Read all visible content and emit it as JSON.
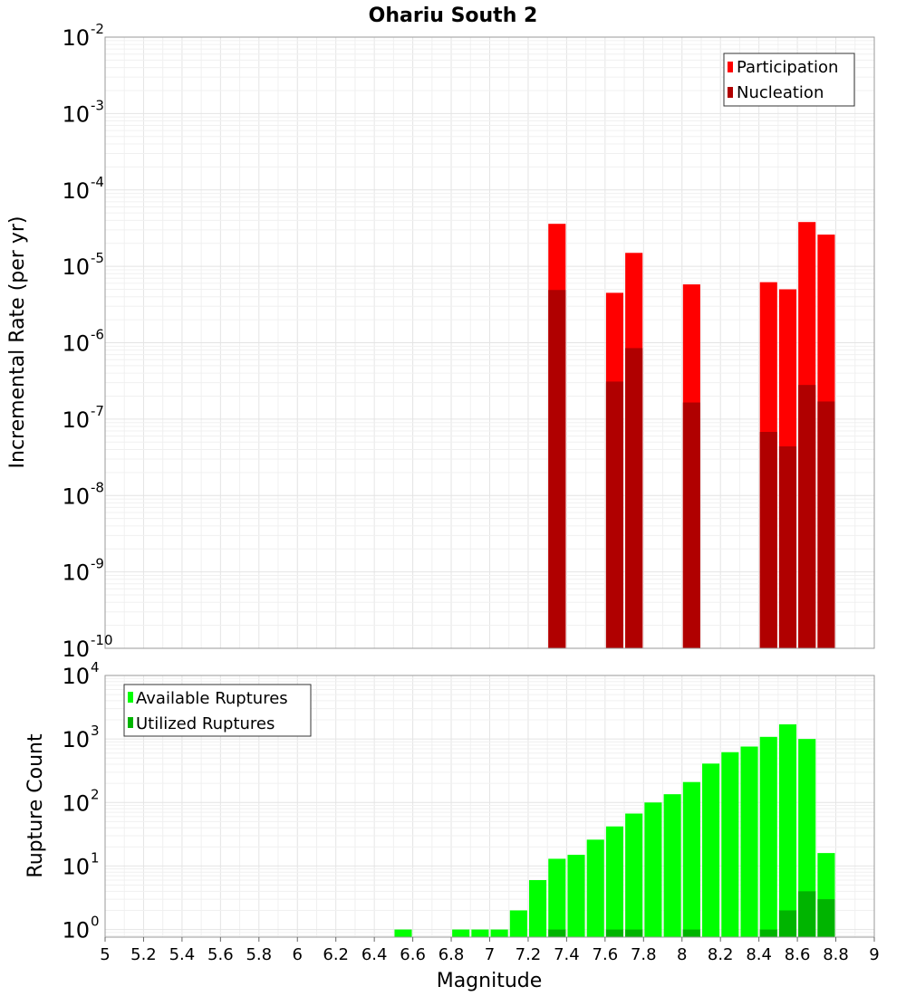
{
  "title": "Ohariu South 2",
  "chart_data": [
    {
      "id": "rate",
      "type": "bar",
      "scale": "log",
      "ylabel": "Incremental Rate (per yr)",
      "xlim": [
        5,
        9
      ],
      "ylim_exp": [
        -10,
        -2
      ],
      "ytick_base": "10",
      "ytick_exps": [
        "-10",
        "-9",
        "-8",
        "-7",
        "-6",
        "-5",
        "-4",
        "-3",
        "-2"
      ],
      "legend_position": "top-right",
      "legend": [
        "Participation",
        "Nucleation"
      ],
      "colors": [
        "#ff0000",
        "#b00000"
      ],
      "x": [
        7.35,
        7.65,
        7.75,
        8.05,
        8.45,
        8.55,
        8.65,
        8.75
      ],
      "series": [
        {
          "name": "Participation",
          "values": [
            3.6e-05,
            4.5e-06,
            1.5e-05,
            5.8e-06,
            6.2e-06,
            5e-06,
            3.8e-05,
            2.6e-05
          ]
        },
        {
          "name": "Nucleation",
          "values": [
            4.9e-06,
            3.1e-07,
            8.5e-07,
            1.65e-07,
            6.8e-08,
            4.4e-08,
            2.8e-07,
            1.7e-07
          ]
        }
      ]
    },
    {
      "id": "count",
      "type": "bar",
      "scale": "log",
      "ylabel": "Rupture Count",
      "xlabel": "Magnitude",
      "xlim": [
        5,
        9
      ],
      "ylim_exp": [
        -0.12,
        4
      ],
      "ytick_base": "10",
      "ytick_exps": [
        "0",
        "1",
        "2",
        "3",
        "4"
      ],
      "legend_position": "top-left",
      "legend": [
        "Available Ruptures",
        "Utilized Ruptures"
      ],
      "colors": [
        "#00ff00",
        "#00b400"
      ],
      "x": [
        6.55,
        6.85,
        6.95,
        7.05,
        7.15,
        7.25,
        7.35,
        7.45,
        7.55,
        7.65,
        7.75,
        7.85,
        7.95,
        8.05,
        8.15,
        8.25,
        8.35,
        8.45,
        8.55,
        8.65,
        8.75
      ],
      "series": [
        {
          "name": "Available Ruptures",
          "values": [
            1,
            1,
            1,
            1,
            2,
            6,
            13,
            15,
            26,
            42,
            67,
            100,
            135,
            210,
            410,
            620,
            760,
            1080,
            1700,
            1000,
            16
          ]
        },
        {
          "name": "Utilized Ruptures",
          "values": [
            0,
            0,
            0,
            0,
            0,
            0,
            1,
            0,
            0,
            1,
            1,
            0,
            0,
            1,
            0,
            0,
            0,
            1,
            2,
            4,
            3
          ]
        }
      ]
    }
  ],
  "x_ticks": [
    "5",
    "5.2",
    "5.4",
    "5.6",
    "5.8",
    "6",
    "6.2",
    "6.4",
    "6.6",
    "6.8",
    "7",
    "7.2",
    "7.4",
    "7.6",
    "7.8",
    "8",
    "8.2",
    "8.4",
    "8.6",
    "8.8",
    "9"
  ]
}
